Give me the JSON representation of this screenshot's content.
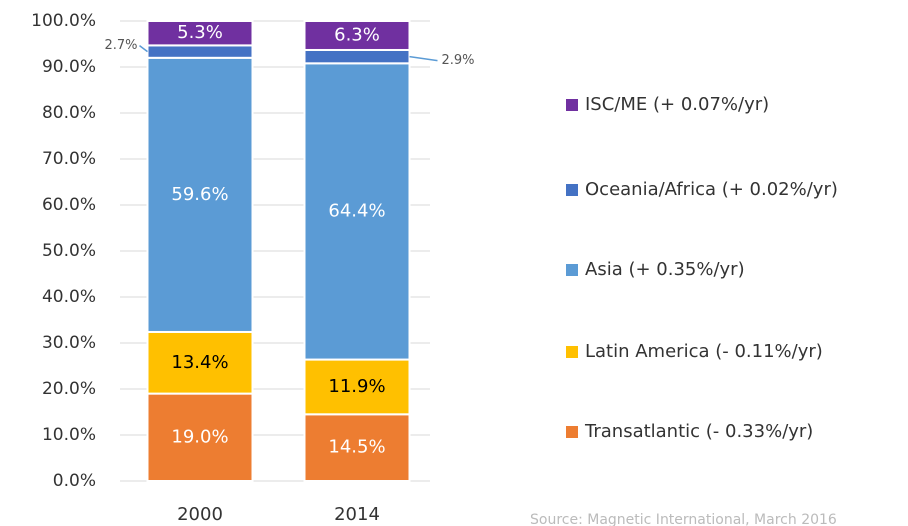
{
  "chart_data": {
    "type": "stacked_bar",
    "categories": [
      "2000",
      "2014"
    ],
    "series": [
      {
        "name": "Transatlantic (- 0.33%/yr)",
        "color": "#ed7d31",
        "label_color": "#ffffff",
        "values": [
          19.0,
          14.5
        ],
        "value_labels": [
          "19.0%",
          "14.5%"
        ]
      },
      {
        "name": "Latin America (- 0.11%/yr)",
        "color": "#ffc000",
        "label_color": "#000000",
        "values": [
          13.4,
          11.9
        ],
        "value_labels": [
          "13.4%",
          "11.9%"
        ]
      },
      {
        "name": "Asia (+ 0.35%/yr)",
        "color": "#5b9bd5",
        "label_color": "#ffffff",
        "values": [
          59.6,
          64.4
        ],
        "value_labels": [
          "59.6%",
          "64.4%"
        ]
      },
      {
        "name": "Oceania/Africa (+ 0.02%/yr)",
        "color": "#4472c4",
        "label_color": "#555555",
        "values": [
          2.7,
          2.9
        ],
        "value_labels": [
          "2.7%",
          "2.9%"
        ]
      },
      {
        "name": "ISC/ME (+ 0.07%/yr)",
        "color": "#7030a0",
        "label_color": "#ffffff",
        "values": [
          5.3,
          6.3
        ],
        "value_labels": [
          "5.3%",
          "6.3%"
        ]
      }
    ],
    "ylim": [
      0,
      100
    ],
    "yticks": [
      {
        "value": 0,
        "label": "0.0%"
      },
      {
        "value": 10,
        "label": "10.0%"
      },
      {
        "value": 20,
        "label": "20.0%"
      },
      {
        "value": 30,
        "label": "30.0%"
      },
      {
        "value": 40,
        "label": "40.0%"
      },
      {
        "value": 50,
        "label": "50.0%"
      },
      {
        "value": 60,
        "label": "60.0%"
      },
      {
        "value": 70,
        "label": "70.0%"
      },
      {
        "value": 80,
        "label": "80.0%"
      },
      {
        "value": 90,
        "label": "90.0%"
      },
      {
        "value": 100,
        "label": "100.0%"
      }
    ],
    "grid": true,
    "legend": "right",
    "source": "Source: Magnetic International, March 2016"
  }
}
